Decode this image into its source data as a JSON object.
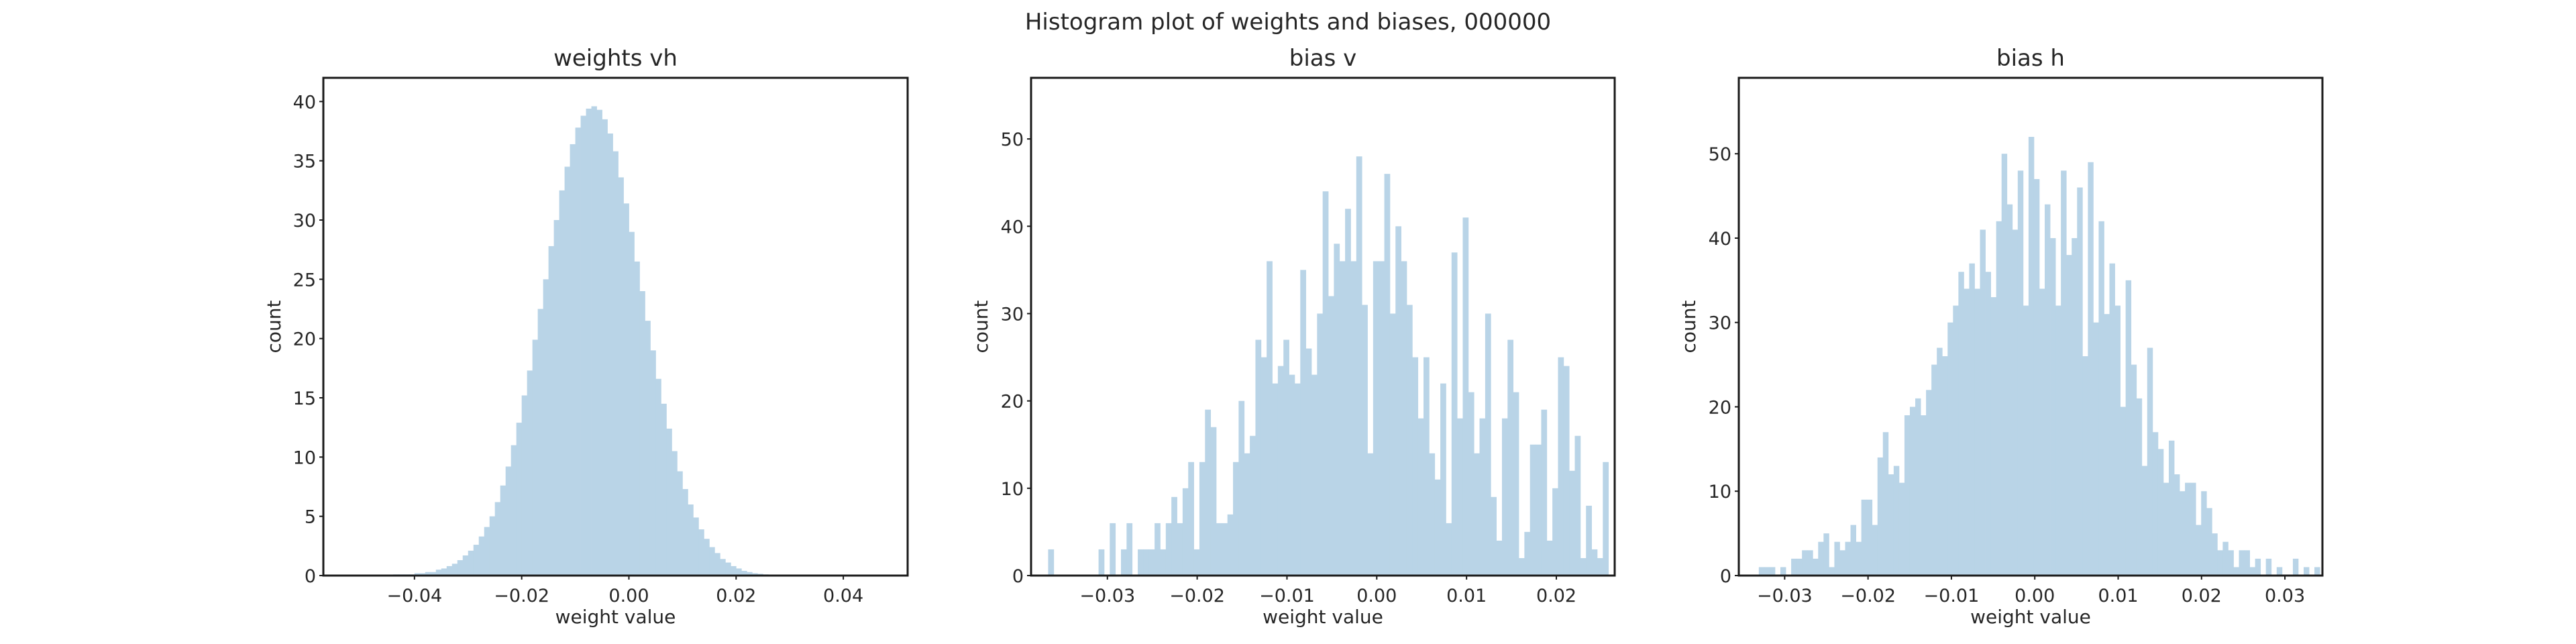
{
  "figure": {
    "suptitle": "Histogram plot of weights and biases, 000000",
    "bar_color": "#b9d4e7",
    "frame_color": "#1a1a1a"
  },
  "chart_data": [
    {
      "type": "bar",
      "title": "weights vh",
      "xlabel": "weight value",
      "ylabel": "count",
      "xlim": [
        -0.057,
        0.052
      ],
      "ylim": [
        0,
        42
      ],
      "xticks": [
        -0.04,
        -0.02,
        0.0,
        0.02,
        0.04
      ],
      "xtick_labels": [
        "−0.04",
        "−0.02",
        "0.00",
        "0.02",
        "0.04"
      ],
      "yticks": [
        0,
        5,
        10,
        15,
        20,
        25,
        30,
        35,
        40
      ],
      "ytick_labels": [
        "0",
        "5",
        "10",
        "15",
        "20",
        "25",
        "30",
        "35",
        "40"
      ],
      "bin_start": -0.054,
      "bin_width": 0.001,
      "values": [
        0.05,
        0.05,
        0.05,
        0.05,
        0.05,
        0.05,
        0.05,
        0.05,
        0.05,
        0.05,
        0.1,
        0.1,
        0.1,
        0.1,
        0.2,
        0.2,
        0.3,
        0.3,
        0.5,
        0.6,
        0.8,
        1.0,
        1.3,
        1.7,
        2.1,
        2.6,
        3.3,
        4.1,
        5.0,
        6.2,
        7.6,
        9.2,
        11.0,
        12.9,
        15.2,
        17.3,
        19.9,
        22.5,
        25.0,
        27.8,
        30.0,
        32.5,
        34.5,
        36.4,
        37.8,
        38.8,
        39.4,
        39.6,
        39.3,
        38.5,
        37.3,
        35.8,
        33.6,
        31.4,
        29.0,
        26.5,
        24.0,
        21.5,
        19.0,
        16.6,
        14.5,
        12.4,
        10.5,
        8.8,
        7.3,
        6.0,
        4.9,
        3.9,
        3.1,
        2.4,
        1.9,
        1.4,
        1.1,
        0.8,
        0.6,
        0.4,
        0.3,
        0.2,
        0.15,
        0.1,
        0.08,
        0.06,
        0.05,
        0.04,
        0.03,
        0.02,
        0.02,
        0.02
      ]
    },
    {
      "type": "bar",
      "title": "bias v",
      "xlabel": "weight value",
      "ylabel": "count",
      "xlim": [
        -0.0385,
        0.0265
      ],
      "ylim": [
        0,
        57
      ],
      "xticks": [
        -0.03,
        -0.02,
        -0.01,
        0.0,
        0.01,
        0.02
      ],
      "xtick_labels": [
        "−0.03",
        "−0.02",
        "−0.01",
        "0.00",
        "0.01",
        "0.02"
      ],
      "yticks": [
        0,
        10,
        20,
        30,
        40,
        50
      ],
      "ytick_labels": [
        "0",
        "10",
        "20",
        "30",
        "40",
        "50"
      ],
      "bin_start": -0.0366,
      "bin_width": 0.000624,
      "values": [
        3,
        0,
        0,
        0,
        0,
        0,
        0,
        0,
        0,
        3,
        0,
        6,
        0,
        3,
        6,
        0,
        3,
        3,
        3,
        6,
        3,
        6,
        9,
        6,
        10,
        13,
        3,
        13,
        19,
        17,
        6,
        6,
        7,
        13,
        20,
        14,
        16,
        27,
        25,
        36,
        22,
        24,
        27,
        23,
        22,
        35,
        26,
        23,
        30,
        44,
        32,
        38,
        36,
        42,
        36,
        48,
        31,
        14,
        36,
        36,
        46,
        30,
        40,
        36,
        31,
        25,
        18,
        25,
        14,
        11,
        22,
        6,
        37,
        18,
        41,
        21,
        14,
        18,
        30,
        9,
        4,
        18,
        27,
        21,
        2,
        5,
        15,
        15,
        19,
        4,
        10,
        25,
        24,
        12,
        16,
        2,
        8,
        3,
        2,
        13,
        0,
        3,
        5,
        0,
        0,
        3,
        0
      ]
    },
    {
      "type": "bar",
      "title": "bias h",
      "xlabel": "weight value",
      "ylabel": "count",
      "xlim": [
        -0.0355,
        0.0345
      ],
      "ylim": [
        0,
        59
      ],
      "xticks": [
        -0.03,
        -0.02,
        -0.01,
        0.0,
        0.01,
        0.02,
        0.03
      ],
      "xtick_labels": [
        "−0.03",
        "−0.02",
        "−0.01",
        "0.00",
        "0.01",
        "0.02",
        "0.03"
      ],
      "yticks": [
        0,
        10,
        20,
        30,
        40,
        50
      ],
      "ytick_labels": [
        "0",
        "10",
        "20",
        "30",
        "40",
        "50"
      ],
      "bin_start": -0.0331,
      "bin_width": 0.000647,
      "values": [
        1,
        1,
        1,
        0,
        1,
        0,
        2,
        2,
        3,
        3,
        2,
        4,
        5,
        1,
        4,
        3,
        4,
        6,
        4,
        9,
        9,
        6,
        14,
        17,
        12,
        13,
        11,
        19,
        20,
        21,
        19,
        22,
        25,
        27,
        26,
        30,
        32,
        36,
        34,
        37,
        34,
        41,
        36,
        33,
        42,
        50,
        44,
        41,
        48,
        32,
        52,
        47,
        34,
        44,
        40,
        32,
        48,
        38,
        40,
        46,
        26,
        49,
        30,
        42,
        31,
        37,
        32,
        20,
        35,
        25,
        21,
        13,
        27,
        17,
        15,
        11,
        16,
        12,
        10,
        11,
        11,
        6,
        10,
        8,
        5,
        3,
        4,
        3,
        1,
        3,
        3,
        1,
        2,
        0,
        2,
        0,
        1,
        0,
        0,
        2,
        0,
        1,
        0,
        1
      ]
    }
  ]
}
